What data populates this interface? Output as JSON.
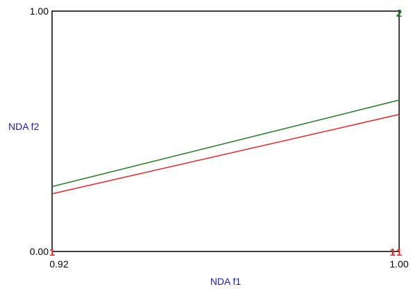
{
  "chart_data": {
    "type": "line",
    "xlabel": "NDA f1",
    "ylabel": "NDA f2",
    "xlim": [
      0.92,
      1.0
    ],
    "ylim": [
      0.0,
      1.0
    ],
    "x_tick_labels": [
      "0.92",
      "1.00"
    ],
    "y_tick_labels": [
      "0.00",
      "1.00"
    ],
    "grid": false,
    "series": [
      {
        "color": "#1a7a1a",
        "x": [
          0.92,
          1.0
        ],
        "y": [
          0.27,
          0.63
        ]
      },
      {
        "color": "#ee2222",
        "x": [
          0.92,
          1.0
        ],
        "y": [
          0.24,
          0.57
        ]
      }
    ],
    "markers": [
      {
        "label": "1",
        "color": "#ee2222",
        "x": 0.92,
        "y": 0.0
      },
      {
        "label": "1",
        "color": "#ee2222",
        "x": 0.9985,
        "y": 0.0
      },
      {
        "label": "1",
        "color": "#ee2222",
        "x": 1.0,
        "y": 0.0
      },
      {
        "label": "2",
        "color": "#1a7a1a",
        "x": 1.0,
        "y": 1.0
      }
    ],
    "colors": {
      "axis_title": "#1a1acc",
      "frame": "#000000"
    }
  }
}
